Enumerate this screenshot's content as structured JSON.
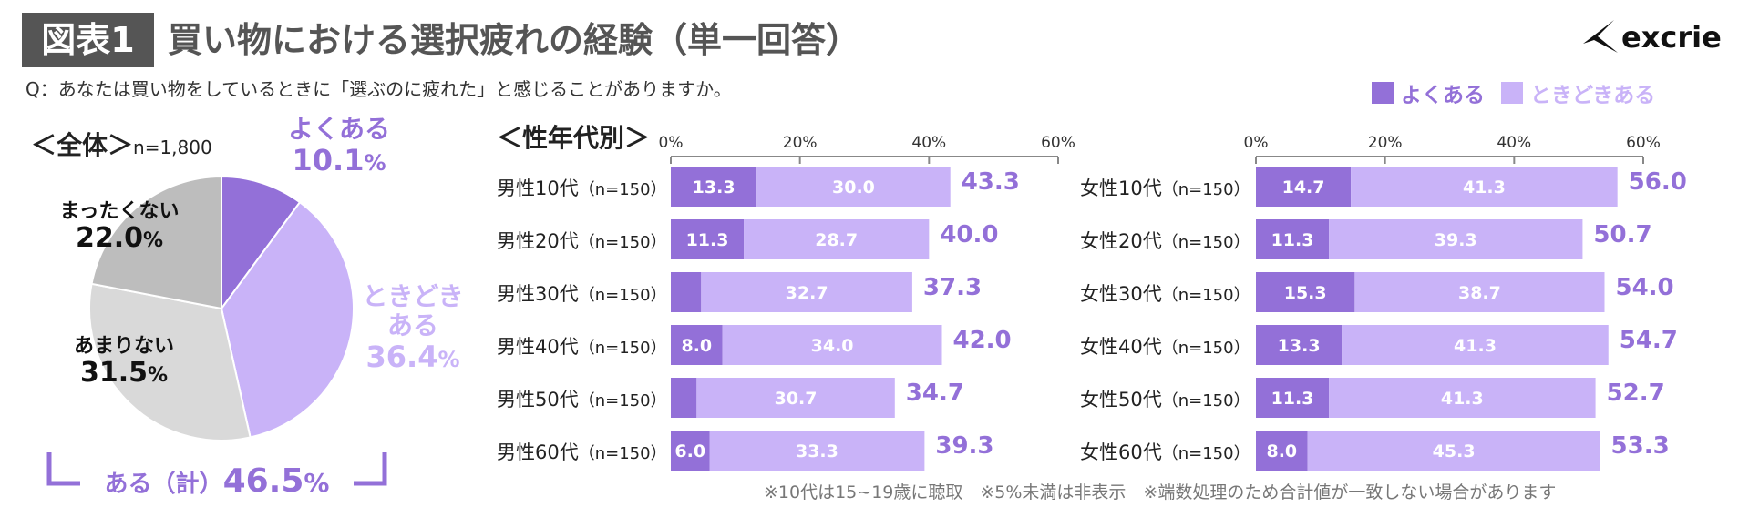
{
  "header": {
    "badge": "図表1",
    "title": "買い物における選択疲れの経験（単一回答）",
    "question": "Q：あなたは買い物をしているときに「選ぶのに疲れた」と感じることがありますか。",
    "logo_text": "excrie"
  },
  "colors": {
    "often": "#9370d8",
    "sometimes": "#c9b3f8",
    "rarely": "#d9d9d9",
    "never": "#bdbdbd",
    "axis": "#888888"
  },
  "legend": {
    "often": "よくある",
    "sometimes": "ときどきある"
  },
  "overall": {
    "heading": "＜全体＞",
    "n": "n=1,800",
    "total_label": "ある（計）",
    "total_value": "46.5",
    "pct": "%",
    "slices": [
      {
        "label": "よくある",
        "value": 10.1,
        "display": "10.1"
      },
      {
        "label": "ときどきある",
        "value": 36.4,
        "display": "36.4"
      },
      {
        "label": "あまりない",
        "value": 31.5,
        "display": "31.5"
      },
      {
        "label": "まったくない",
        "value": 22.0,
        "display": "22.0"
      }
    ]
  },
  "by_group": {
    "heading": "＜性年代別＞"
  },
  "chart_data": {
    "type": "bar",
    "stacked": true,
    "orientation": "horizontal",
    "title": "＜性年代別＞",
    "xlim": [
      0,
      60
    ],
    "ticks": [
      "0%",
      "20%",
      "40%",
      "60%"
    ],
    "series_names": [
      "よくある",
      "ときどきある"
    ],
    "panels": [
      {
        "name": "男性",
        "rows": [
          {
            "label": "男性10代",
            "n": "（n=150）",
            "often": 13.3,
            "sometimes": 30.0,
            "often_label": "13.3",
            "sometimes_label": "30.0",
            "total": "43.3"
          },
          {
            "label": "男性20代",
            "n": "（n=150）",
            "often": 11.3,
            "sometimes": 28.7,
            "often_label": "11.3",
            "sometimes_label": "28.7",
            "total": "40.0"
          },
          {
            "label": "男性30代",
            "n": "（n=150）",
            "often": 4.7,
            "sometimes": 32.7,
            "often_label": "",
            "sometimes_label": "32.7",
            "total": "37.3"
          },
          {
            "label": "男性40代",
            "n": "（n=150）",
            "often": 8.0,
            "sometimes": 34.0,
            "often_label": "8.0",
            "sometimes_label": "34.0",
            "total": "42.0"
          },
          {
            "label": "男性50代",
            "n": "（n=150）",
            "often": 4.0,
            "sometimes": 30.7,
            "often_label": "",
            "sometimes_label": "30.7",
            "total": "34.7"
          },
          {
            "label": "男性60代",
            "n": "（n=150）",
            "often": 6.0,
            "sometimes": 33.3,
            "often_label": "6.0",
            "sometimes_label": "33.3",
            "total": "39.3"
          }
        ]
      },
      {
        "name": "女性",
        "rows": [
          {
            "label": "女性10代",
            "n": "（n=150）",
            "often": 14.7,
            "sometimes": 41.3,
            "often_label": "14.7",
            "sometimes_label": "41.3",
            "total": "56.0"
          },
          {
            "label": "女性20代",
            "n": "（n=150）",
            "often": 11.3,
            "sometimes": 39.3,
            "often_label": "11.3",
            "sometimes_label": "39.3",
            "total": "50.7"
          },
          {
            "label": "女性30代",
            "n": "（n=150）",
            "often": 15.3,
            "sometimes": 38.7,
            "often_label": "15.3",
            "sometimes_label": "38.7",
            "total": "54.0"
          },
          {
            "label": "女性40代",
            "n": "（n=150）",
            "often": 13.3,
            "sometimes": 41.3,
            "often_label": "13.3",
            "sometimes_label": "41.3",
            "total": "54.7"
          },
          {
            "label": "女性50代",
            "n": "（n=150）",
            "often": 11.3,
            "sometimes": 41.3,
            "often_label": "11.3",
            "sometimes_label": "41.3",
            "total": "52.7"
          },
          {
            "label": "女性60代",
            "n": "（n=150）",
            "often": 8.0,
            "sometimes": 45.3,
            "often_label": "8.0",
            "sometimes_label": "45.3",
            "total": "53.3"
          }
        ]
      }
    ]
  },
  "footnote": "※10代は15~19歳に聴取　※5%未満は非表示　※端数処理のため合計値が一致しない場合があります"
}
